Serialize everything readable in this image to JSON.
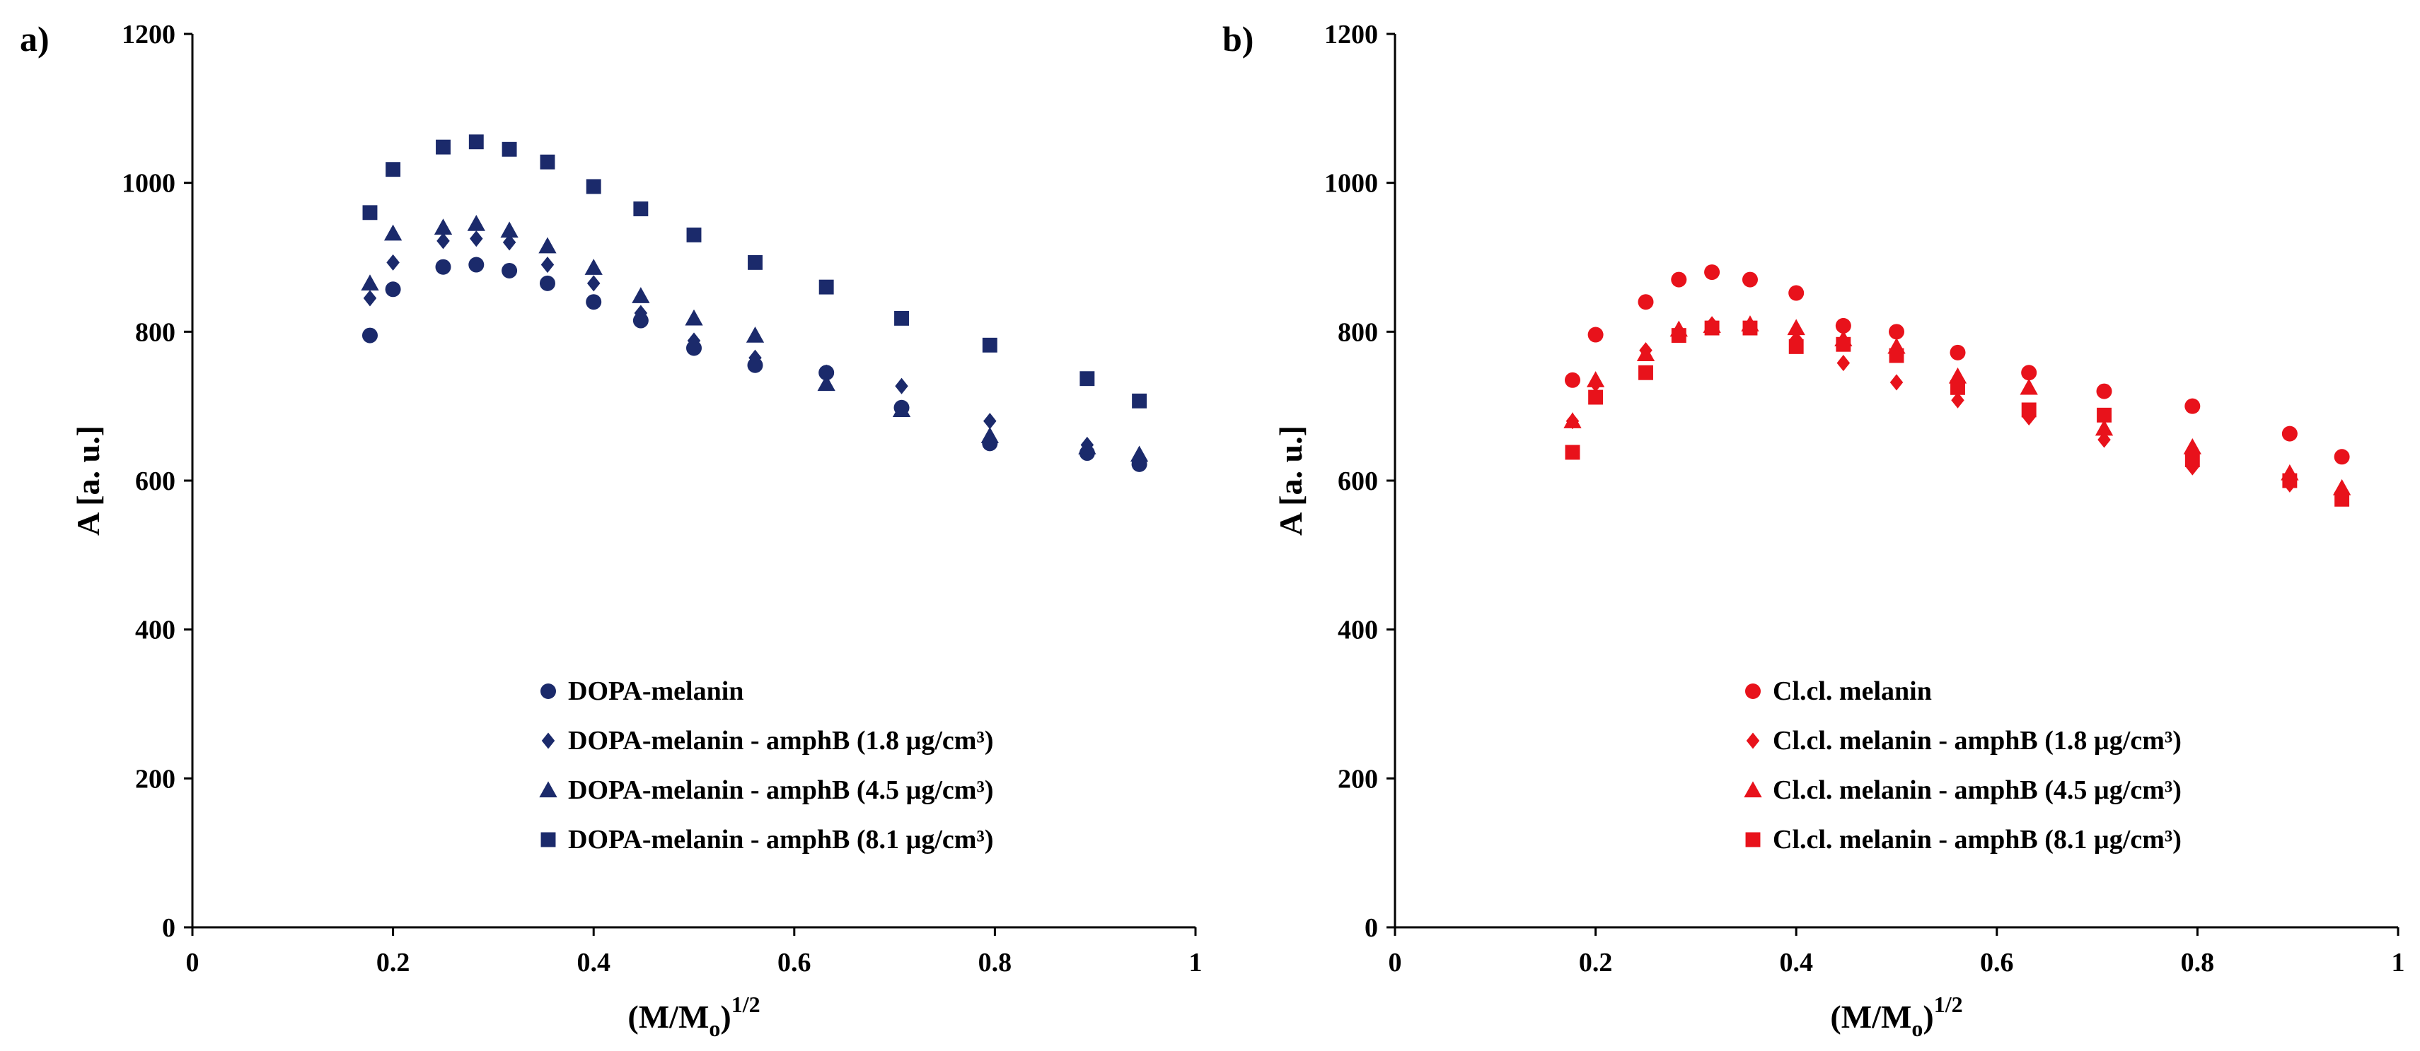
{
  "chart_data": [
    {
      "type": "scatter",
      "panel_label": "a)",
      "xlabel_main": "(M/M",
      "xlabel_sub": "o",
      "xlabel_sup": ")1/2",
      "ylabel": "A [a. u.]",
      "xlim": [
        0,
        1
      ],
      "ylim": [
        0,
        1200
      ],
      "xticks": [
        0,
        0.2,
        0.4,
        0.6,
        0.8,
        1
      ],
      "xtick_labels": [
        "0",
        "0.2",
        "0.4",
        "0.6",
        "0.8",
        "1"
      ],
      "yticks": [
        0,
        200,
        400,
        600,
        800,
        1000,
        1200
      ],
      "ytick_labels": [
        "0",
        "200",
        "400",
        "600",
        "800",
        "1000",
        "1200"
      ],
      "grid": false,
      "legend_position": "bottom-right",
      "color": "#1b2a6b",
      "x": [
        0.177,
        0.2,
        0.25,
        0.283,
        0.316,
        0.354,
        0.4,
        0.447,
        0.5,
        0.561,
        0.632,
        0.707,
        0.795,
        0.892,
        0.944
      ],
      "series": [
        {
          "name": "DOPA-melanin",
          "marker": "circle",
          "values": [
            795,
            857,
            887,
            890,
            882,
            865,
            840,
            815,
            778,
            755,
            745,
            698,
            650,
            637,
            622
          ]
        },
        {
          "name": "DOPA-melanin - amphB (1.8 µg/cm³)",
          "marker": "diamond",
          "values": [
            845,
            893,
            922,
            925,
            920,
            890,
            865,
            825,
            788,
            765,
            745,
            727,
            680,
            648,
            625
          ]
        },
        {
          "name": "DOPA-melanin - amphB (4.5 µg/cm³)",
          "marker": "triangle",
          "values": [
            865,
            932,
            940,
            945,
            936,
            915,
            886,
            848,
            818,
            795,
            730,
            695,
            660,
            645,
            635
          ]
        },
        {
          "name": "DOPA-melanin - amphB (8.1 µg/cm³)",
          "marker": "square",
          "values": [
            960,
            1018,
            1048,
            1055,
            1045,
            1028,
            995,
            965,
            930,
            893,
            860,
            818,
            782,
            737,
            707
          ]
        }
      ]
    },
    {
      "type": "scatter",
      "panel_label": "b)",
      "xlabel_main": "(M/M",
      "xlabel_sub": "o",
      "xlabel_sup": ")1/2",
      "ylabel": "A [a. u.]",
      "xlim": [
        0,
        1
      ],
      "ylim": [
        0,
        1200
      ],
      "xticks": [
        0,
        0.2,
        0.4,
        0.6,
        0.8,
        1
      ],
      "xtick_labels": [
        "0",
        "0.2",
        "0.4",
        "0.6",
        "0.8",
        "1"
      ],
      "yticks": [
        0,
        200,
        400,
        600,
        800,
        1000,
        1200
      ],
      "ytick_labels": [
        "0",
        "200",
        "400",
        "600",
        "800",
        "1000",
        "1200"
      ],
      "grid": false,
      "legend_position": "bottom-right",
      "color": "#e8121b",
      "x": [
        0.177,
        0.2,
        0.25,
        0.283,
        0.316,
        0.354,
        0.4,
        0.447,
        0.5,
        0.561,
        0.632,
        0.707,
        0.795,
        0.892,
        0.944
      ],
      "series": [
        {
          "name": "Cl.cl. melanin",
          "marker": "circle",
          "values": [
            735,
            796,
            840,
            870,
            880,
            870,
            852,
            808,
            800,
            772,
            745,
            720,
            700,
            663,
            632
          ]
        },
        {
          "name": "Cl.cl. melanin - amphB (1.8 µg/cm³)",
          "marker": "diamond",
          "values": [
            680,
            730,
            775,
            800,
            810,
            808,
            790,
            758,
            732,
            708,
            685,
            655,
            618,
            595,
            580
          ]
        },
        {
          "name": "Cl.cl. melanin - amphB (4.5 µg/cm³)",
          "marker": "triangle",
          "values": [
            680,
            735,
            770,
            803,
            808,
            810,
            805,
            790,
            780,
            740,
            725,
            670,
            645,
            610,
            590
          ]
        },
        {
          "name": "Cl.cl. melanin - amphB (8.1 µg/cm³)",
          "marker": "square",
          "values": [
            638,
            712,
            745,
            795,
            805,
            805,
            780,
            783,
            768,
            725,
            695,
            688,
            628,
            600,
            575
          ]
        }
      ]
    }
  ]
}
